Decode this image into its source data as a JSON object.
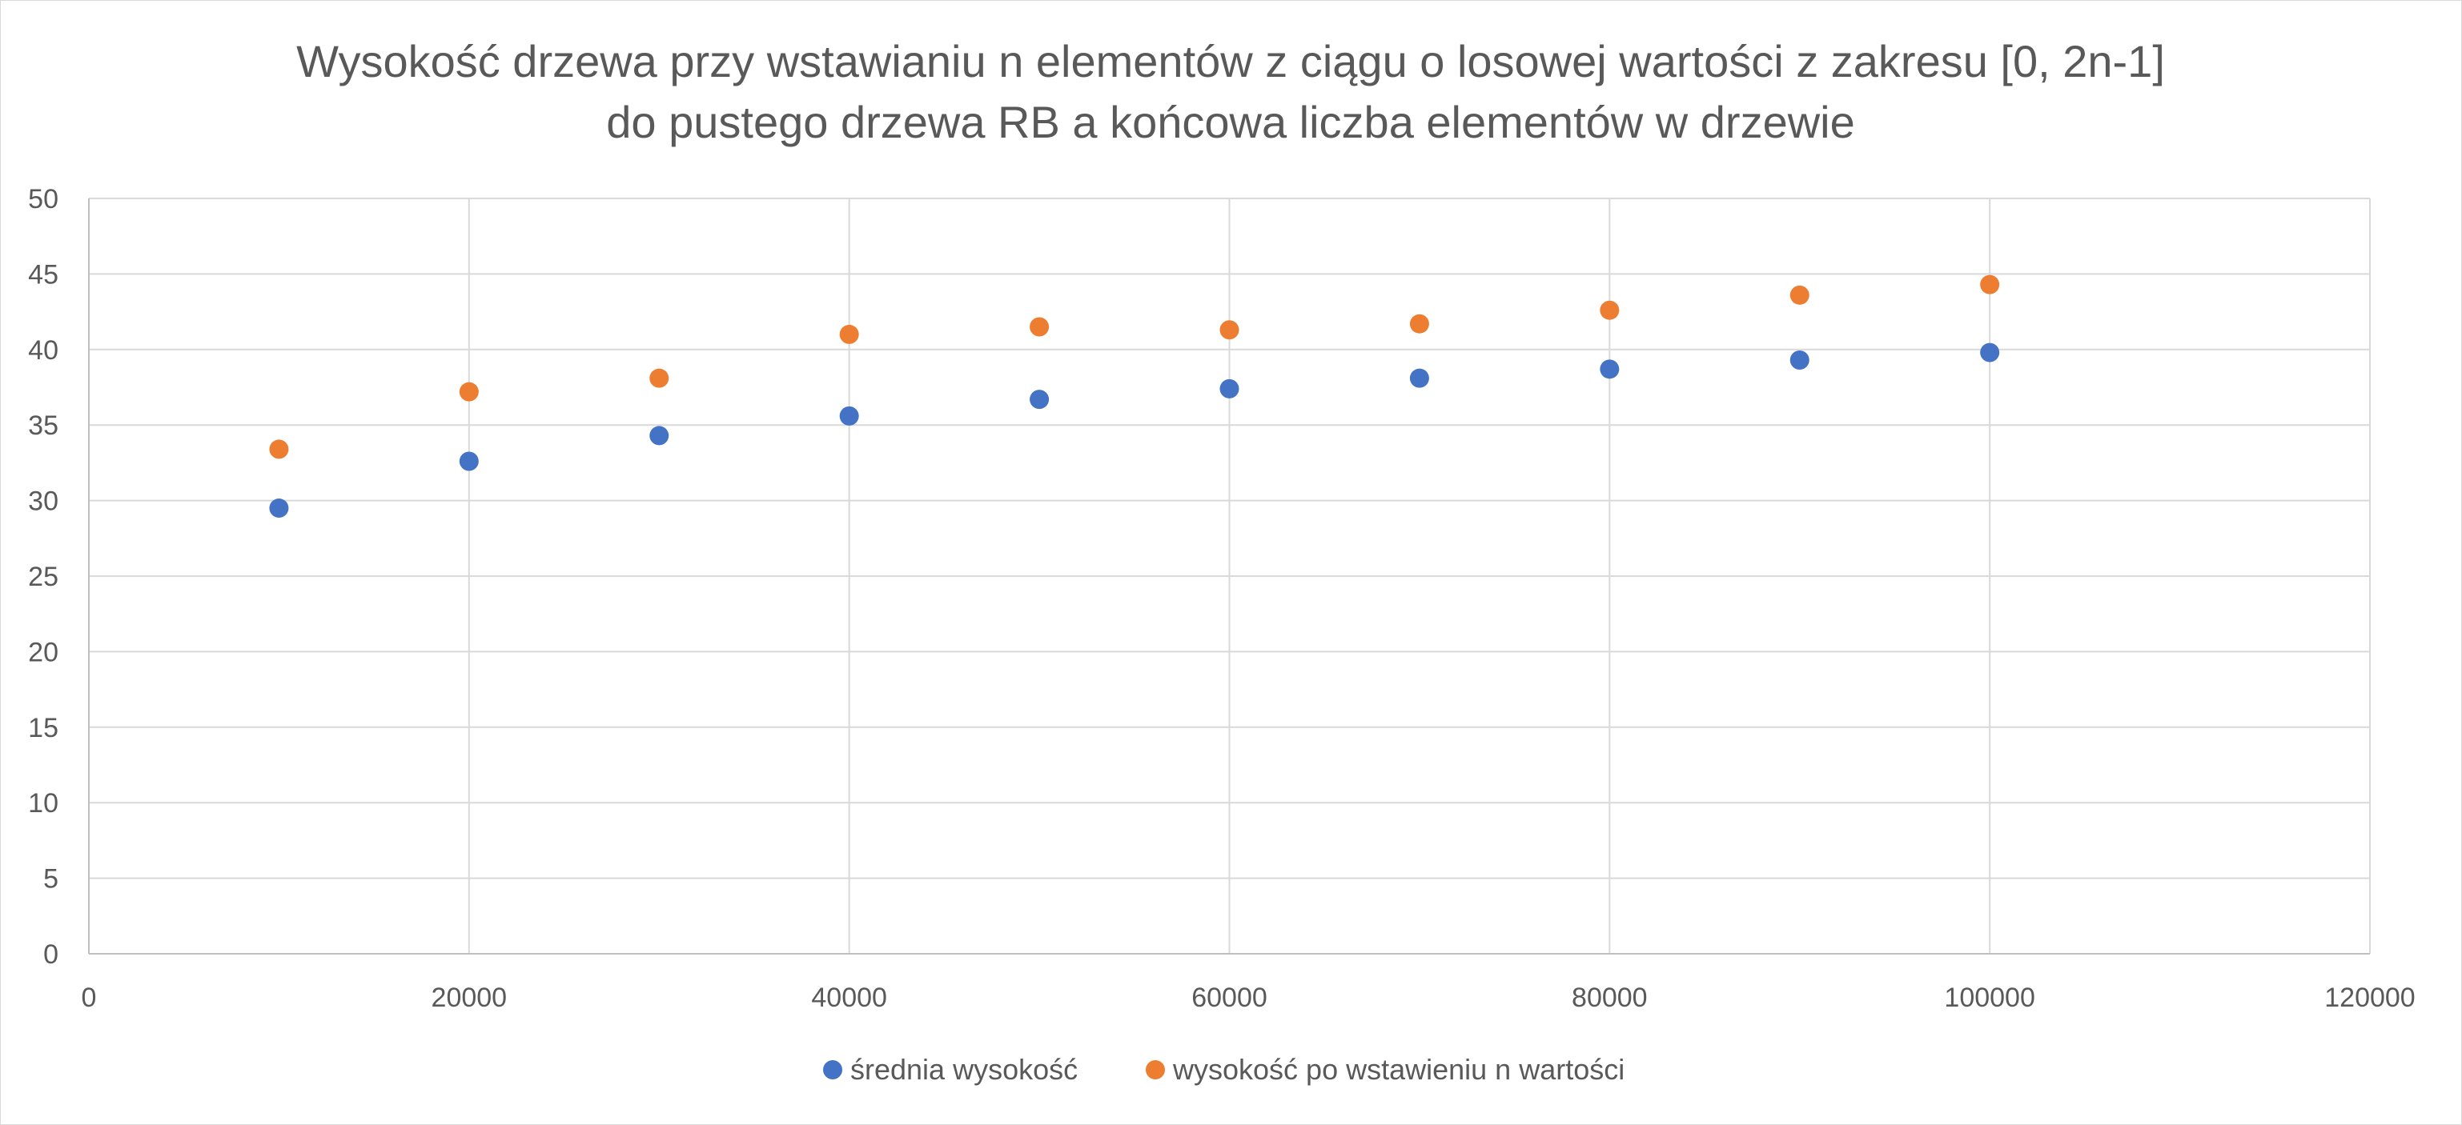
{
  "chart_data": {
    "type": "scatter",
    "title": [
      "Wysokość drzewa przy wstawianiu n elementów z ciągu o losowej wartości z zakresu [0, 2n-1]",
      "do pustego drzewa RB a końcowa liczba elementów w drzewie"
    ],
    "xlabel": "",
    "ylabel": "",
    "xlim": [
      0,
      120000
    ],
    "ylim": [
      0,
      50
    ],
    "x_ticks": [
      "0",
      "20000",
      "40000",
      "60000",
      "80000",
      "100000",
      "120000"
    ],
    "y_ticks": [
      "0",
      "5",
      "10",
      "15",
      "20",
      "25",
      "30",
      "35",
      "40",
      "45",
      "50"
    ],
    "grid": true,
    "legend_position": "bottom",
    "series": [
      {
        "name": "średnia wysokość",
        "color": "#4472c4",
        "x": [
          10000,
          20000,
          30000,
          40000,
          50000,
          60000,
          70000,
          80000,
          90000,
          100000
        ],
        "y": [
          29.5,
          32.6,
          34.3,
          35.6,
          36.7,
          37.4,
          38.1,
          38.7,
          39.3,
          39.8
        ]
      },
      {
        "name": "wysokość po wstawieniu n wartości",
        "color": "#ed7d31",
        "x": [
          10000,
          20000,
          30000,
          40000,
          50000,
          60000,
          70000,
          80000,
          90000,
          100000
        ],
        "y": [
          33.4,
          37.2,
          38.1,
          41.0,
          41.5,
          41.3,
          41.7,
          42.6,
          43.6,
          44.3
        ]
      }
    ]
  }
}
